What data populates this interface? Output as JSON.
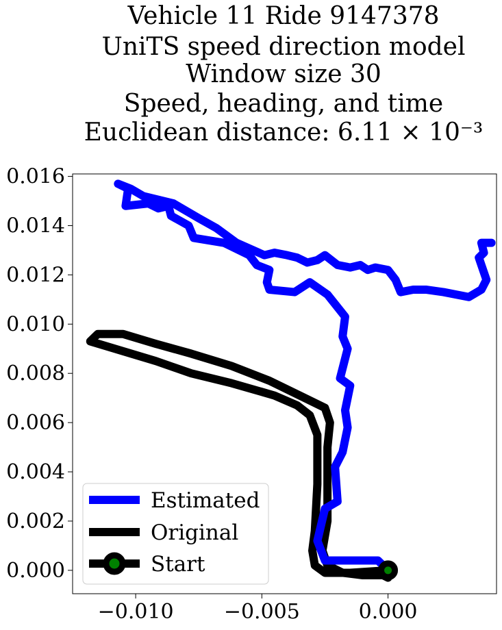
{
  "chart_data": {
    "type": "line",
    "title_lines": [
      "Vehicle 11 Ride 9147378",
      "UniTS speed direction model",
      "Window size 30",
      "Speed, heading, and time",
      "Euclidean distance: 6.11 × 10⁻³"
    ],
    "xlabel": "",
    "ylabel": "",
    "xlim": [
      -0.0125,
      0.0043
    ],
    "ylim": [
      -0.00095,
      0.0161
    ],
    "xticks": [
      -0.01,
      -0.005,
      0.0
    ],
    "xtick_labels": [
      "−0.010",
      "−0.005",
      "0.000"
    ],
    "yticks": [
      0.0,
      0.002,
      0.004,
      0.006,
      0.008,
      0.01,
      0.012,
      0.014,
      0.016
    ],
    "ytick_labels": [
      "0.000",
      "0.002",
      "0.004",
      "0.006",
      "0.008",
      "0.010",
      "0.012",
      "0.014",
      "0.016"
    ],
    "grid": false,
    "legend_position": "lower-left",
    "series": [
      {
        "name": "Estimated",
        "color": "#0000ff",
        "points": [
          [
            0.0,
            0.0
          ],
          [
            -0.0004,
            0.0004
          ],
          [
            -0.001,
            0.0004
          ],
          [
            -0.002,
            0.0004
          ],
          [
            -0.0025,
            0.0004
          ],
          [
            -0.0028,
            0.0012
          ],
          [
            -0.0025,
            0.0025
          ],
          [
            -0.002,
            0.0028
          ],
          [
            -0.0021,
            0.0042
          ],
          [
            -0.0018,
            0.0048
          ],
          [
            -0.0016,
            0.0058
          ],
          [
            -0.0017,
            0.0065
          ],
          [
            -0.0015,
            0.0075
          ],
          [
            -0.0019,
            0.0078
          ],
          [
            -0.0016,
            0.009
          ],
          [
            -0.0018,
            0.0095
          ],
          [
            -0.0017,
            0.0103
          ],
          [
            -0.0024,
            0.0112
          ],
          [
            -0.0031,
            0.0117
          ],
          [
            -0.0037,
            0.0113
          ],
          [
            -0.0047,
            0.0114
          ],
          [
            -0.0048,
            0.0117
          ],
          [
            -0.0047,
            0.0122
          ],
          [
            -0.0052,
            0.0124
          ],
          [
            -0.0055,
            0.0128
          ],
          [
            -0.0065,
            0.0133
          ],
          [
            -0.0077,
            0.0135
          ],
          [
            -0.0079,
            0.014
          ],
          [
            -0.0086,
            0.0144
          ],
          [
            -0.0087,
            0.0148
          ],
          [
            -0.0091,
            0.0147
          ],
          [
            -0.0095,
            0.0149
          ],
          [
            -0.0104,
            0.0148
          ],
          [
            -0.0103,
            0.0155
          ],
          [
            -0.0107,
            0.0157
          ],
          [
            -0.0102,
            0.0155
          ],
          [
            -0.0097,
            0.0152
          ],
          [
            -0.0085,
            0.0149
          ],
          [
            -0.0075,
            0.0143
          ],
          [
            -0.0068,
            0.0139
          ],
          [
            -0.006,
            0.0133
          ],
          [
            -0.0049,
            0.0128
          ],
          [
            -0.0045,
            0.0129
          ],
          [
            -0.004,
            0.0128
          ],
          [
            -0.0036,
            0.0127
          ],
          [
            -0.0032,
            0.0125
          ],
          [
            -0.0028,
            0.0126
          ],
          [
            -0.0025,
            0.0128
          ],
          [
            -0.002,
            0.0124
          ],
          [
            -0.0015,
            0.0123
          ],
          [
            -0.0011,
            0.0124
          ],
          [
            -0.0008,
            0.0122
          ],
          [
            -0.0005,
            0.0123
          ],
          [
            0.0,
            0.0122
          ],
          [
            0.0003,
            0.0118
          ],
          [
            0.0005,
            0.0113
          ],
          [
            0.001,
            0.0114
          ],
          [
            0.0015,
            0.0114
          ],
          [
            0.0022,
            0.0113
          ],
          [
            0.0032,
            0.0111
          ],
          [
            0.0037,
            0.0114
          ],
          [
            0.0039,
            0.0118
          ],
          [
            0.0037,
            0.0124
          ],
          [
            0.0036,
            0.0127
          ],
          [
            0.0038,
            0.0129
          ],
          [
            0.0037,
            0.0133
          ],
          [
            0.0041,
            0.0133
          ]
        ]
      },
      {
        "name": "Original",
        "color": "#000000",
        "points": [
          [
            0.0,
            0.0
          ],
          [
            -0.0015,
            -0.0001
          ],
          [
            -0.0025,
            -0.0001
          ],
          [
            -0.0029,
            0.0002
          ],
          [
            -0.003,
            0.0008
          ],
          [
            -0.0029,
            0.0016
          ],
          [
            -0.0028,
            0.0035
          ],
          [
            -0.0028,
            0.0055
          ],
          [
            -0.0031,
            0.0063
          ],
          [
            -0.0036,
            0.0067
          ],
          [
            -0.0045,
            0.0071
          ],
          [
            -0.0062,
            0.0076
          ],
          [
            -0.0078,
            0.008
          ],
          [
            -0.0092,
            0.0085
          ],
          [
            -0.0105,
            0.0089
          ],
          [
            -0.0118,
            0.0093
          ],
          [
            -0.0115,
            0.0096
          ],
          [
            -0.0105,
            0.0096
          ],
          [
            -0.0092,
            0.0092
          ],
          [
            -0.0078,
            0.0088
          ],
          [
            -0.0062,
            0.0083
          ],
          [
            -0.0047,
            0.0077
          ],
          [
            -0.0035,
            0.0071
          ],
          [
            -0.0025,
            0.0066
          ],
          [
            -0.0023,
            0.006
          ],
          [
            -0.0024,
            0.005
          ],
          [
            -0.0024,
            0.0035
          ],
          [
            -0.0024,
            0.002
          ],
          [
            -0.0026,
            0.0008
          ],
          [
            -0.0024,
            0.0002
          ],
          [
            -0.0018,
            -0.0001
          ],
          [
            -0.001,
            -0.0002
          ],
          [
            -0.0002,
            -0.0002
          ],
          [
            0.0,
            -0.0003
          ]
        ]
      }
    ],
    "start_marker": {
      "name": "Start",
      "x": 0.0,
      "y": 0.0,
      "color": "#008000",
      "edge_color": "#000000"
    }
  }
}
